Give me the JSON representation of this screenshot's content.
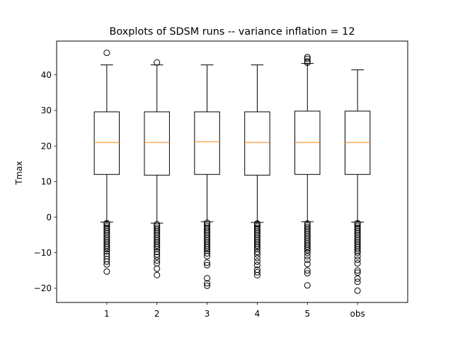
{
  "chart_data": {
    "type": "boxplot",
    "title": "Boxplots of SDSM runs -- variance inflation = 12",
    "xlabel": "",
    "ylabel": "Tmax",
    "ylim": [
      -24,
      49.5
    ],
    "yticks": [
      -20,
      -10,
      0,
      10,
      20,
      30,
      40
    ],
    "grid": false,
    "colors": {
      "median": "#ff7f0e",
      "box": "#000000",
      "flier": "#000000"
    },
    "categories": [
      "1",
      "2",
      "3",
      "4",
      "5",
      "obs"
    ],
    "boxes": [
      {
        "label": "1",
        "q1": 12.0,
        "median": 21.0,
        "q3": 29.6,
        "whisker_low": -1.4,
        "whisker_high": 42.8,
        "fliers": [
          46.2,
          -15.3,
          -13.3,
          -12.5,
          -11.8,
          -11.0,
          -10.3,
          -9.6,
          -9.0,
          -8.5,
          -8.0,
          -7.5,
          -7.0,
          -6.5,
          -6.0,
          -5.5,
          -5.0,
          -4.5,
          -4.0,
          -3.5,
          -3.0,
          -2.5,
          -2.0,
          -1.7
        ]
      },
      {
        "label": "2",
        "q1": 11.8,
        "median": 21.0,
        "q3": 29.6,
        "whisker_low": -1.7,
        "whisker_high": 42.8,
        "fliers": [
          43.5,
          -16.3,
          -14.5,
          -13.0,
          -12.2,
          -11.2,
          -10.5,
          -9.8,
          -9.0,
          -8.5,
          -8.0,
          -7.5,
          -7.0,
          -6.5,
          -6.0,
          -5.5,
          -5.0,
          -4.5,
          -4.0,
          -3.5,
          -3.0,
          -2.5,
          -2.0
        ]
      },
      {
        "label": "3",
        "q1": 12.0,
        "median": 21.2,
        "q3": 29.6,
        "whisker_low": -1.3,
        "whisker_high": 42.8,
        "fliers": [
          -19.3,
          -18.6,
          -17.2,
          -13.5,
          -12.8,
          -11.0,
          -10.2,
          -9.5,
          -9.0,
          -8.5,
          -8.0,
          -7.5,
          -7.0,
          -6.5,
          -6.0,
          -5.5,
          -5.0,
          -4.5,
          -4.0,
          -3.5,
          -3.0,
          -2.5,
          -2.0,
          -1.6
        ]
      },
      {
        "label": "4",
        "q1": 11.8,
        "median": 21.0,
        "q3": 29.6,
        "whisker_low": -1.5,
        "whisker_high": 42.8,
        "fliers": [
          -16.3,
          -15.5,
          -14.8,
          -13.5,
          -12.5,
          -11.5,
          -10.5,
          -9.8,
          -9.0,
          -8.5,
          -8.0,
          -7.5,
          -7.0,
          -6.5,
          -6.0,
          -5.5,
          -5.0,
          -4.5,
          -4.0,
          -3.5,
          -3.0,
          -2.5,
          -2.0,
          -1.8
        ]
      },
      {
        "label": "5",
        "q1": 12.0,
        "median": 21.0,
        "q3": 29.8,
        "whisker_low": -1.3,
        "whisker_high": 43.2,
        "fliers": [
          45.0,
          44.5,
          43.8,
          43.4,
          -19.2,
          -15.8,
          -15.0,
          -13.2,
          -12.0,
          -11.0,
          -10.0,
          -9.3,
          -8.8,
          -8.3,
          -7.8,
          -7.3,
          -6.8,
          -6.3,
          -5.8,
          -5.3,
          -4.8,
          -4.3,
          -3.8,
          -3.3,
          -2.8,
          -2.3,
          -1.8
        ]
      },
      {
        "label": "obs",
        "q1": 12.0,
        "median": 21.0,
        "q3": 29.8,
        "whisker_low": -1.4,
        "whisker_high": 41.4,
        "fliers": [
          -20.7,
          -18.2,
          -17.3,
          -15.6,
          -15.0,
          -13.0,
          -12.0,
          -11.0,
          -10.0,
          -9.5,
          -9.0,
          -8.5,
          -8.0,
          -7.5,
          -7.0,
          -6.5,
          -6.0,
          -5.5,
          -5.0,
          -4.5,
          -4.0,
          -3.5,
          -3.0,
          -2.5,
          -2.0,
          -1.7
        ]
      }
    ]
  }
}
